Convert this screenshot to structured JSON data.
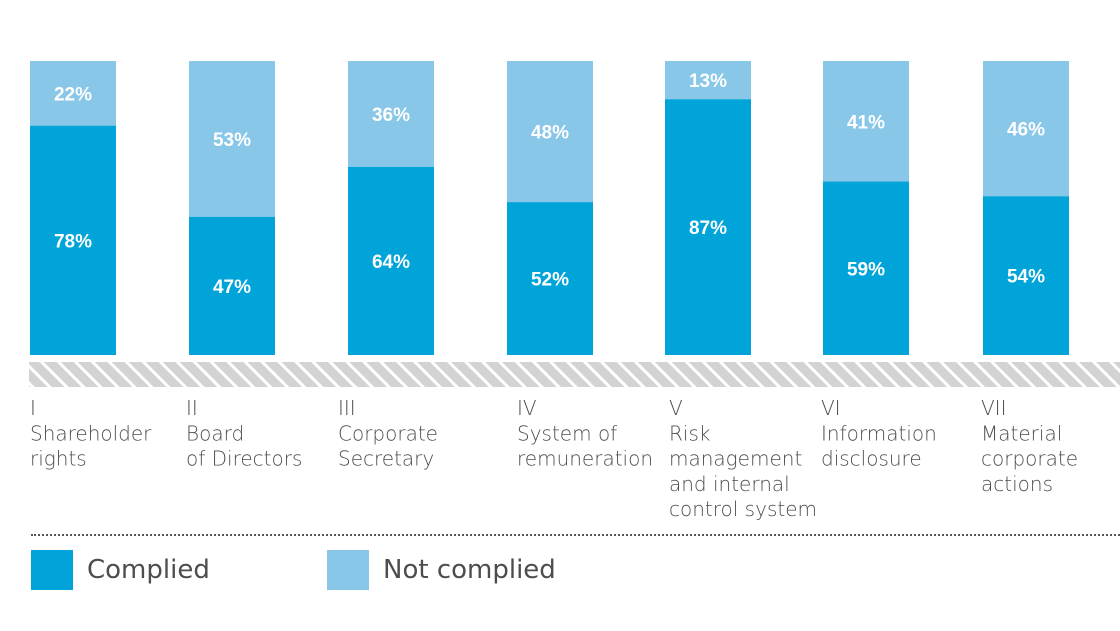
{
  "colors": {
    "complied": "#00a4d8",
    "not_complied": "#89c7e8",
    "hatch_light": "#d3d3d3",
    "hatch_dark": "#ffffff"
  },
  "legend": {
    "complied": "Complied",
    "not_complied": "Not complied"
  },
  "chart_data": {
    "type": "bar",
    "stacked": true,
    "ylim": [
      0,
      100
    ],
    "categories": [
      {
        "numeral": "I",
        "lines": [
          "Shareholder",
          "rights"
        ]
      },
      {
        "numeral": "II",
        "lines": [
          "Board",
          "of Directors"
        ]
      },
      {
        "numeral": "III",
        "lines": [
          "Corporate",
          "Secretary"
        ]
      },
      {
        "numeral": "IV",
        "lines": [
          "System of",
          "remuneration"
        ]
      },
      {
        "numeral": "V",
        "lines": [
          "Risk",
          "management",
          "and internal",
          "control system"
        ]
      },
      {
        "numeral": "VI",
        "lines": [
          "Information",
          "disclosure"
        ]
      },
      {
        "numeral": "VII",
        "lines": [
          "Material",
          "corporate",
          "actions"
        ]
      }
    ],
    "series": [
      {
        "name": "Complied",
        "values": [
          78,
          47,
          64,
          52,
          87,
          59,
          54
        ]
      },
      {
        "name": "Not complied",
        "values": [
          22,
          53,
          36,
          48,
          13,
          41,
          46
        ]
      }
    ],
    "value_suffix": "%"
  }
}
